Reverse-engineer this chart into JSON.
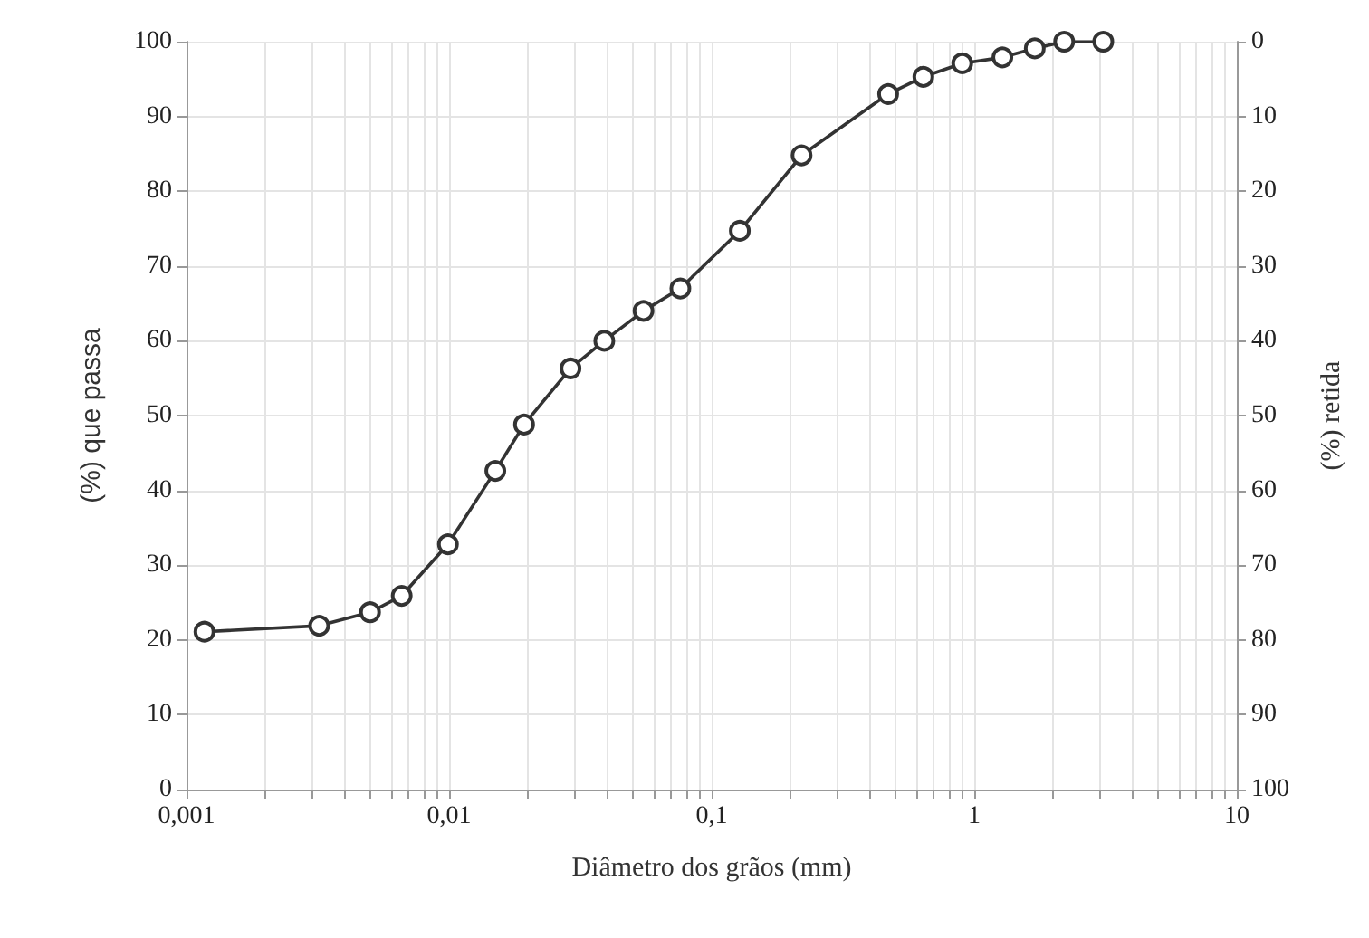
{
  "chart_data": {
    "type": "line",
    "xlabel": "Diâmetro dos grãos (mm)",
    "ylabel": "(%) que passa",
    "y2label": "(%) retida",
    "x": [
      0.00117,
      0.0032,
      0.005,
      0.0066,
      0.0099,
      0.015,
      0.0193,
      0.029,
      0.039,
      0.055,
      0.076,
      0.128,
      0.22,
      0.47,
      0.64,
      0.9,
      1.28,
      1.7,
      2.2,
      3.1
    ],
    "series": [
      {
        "color": "#333333",
        "values": [
          21.1,
          21.9,
          23.7,
          25.9,
          32.8,
          42.6,
          48.8,
          56.3,
          60,
          64,
          67,
          74.7,
          84.8,
          93,
          95.3,
          97.1,
          97.9,
          99.1,
          100,
          100
        ]
      }
    ],
    "log": "x",
    "xlim": [
      0.001,
      10
    ],
    "xticks": [
      {
        "value": 0.001,
        "label": "0,001"
      },
      {
        "value": 0.01,
        "label": "0,01"
      },
      {
        "value": 0.1,
        "label": "0,1"
      },
      {
        "value": 1,
        "label": "1"
      },
      {
        "value": 10,
        "label": "10"
      }
    ],
    "ylim": [
      0,
      100
    ],
    "yticks": [
      0,
      10,
      20,
      30,
      40,
      50,
      60,
      70,
      80,
      90,
      100
    ],
    "y2lim": [
      100,
      0
    ],
    "y2ticks": [
      0,
      10,
      20,
      30,
      40,
      50,
      60,
      70,
      80,
      90,
      100
    ],
    "grid": true,
    "marker": "circle",
    "line_style": "solid"
  }
}
